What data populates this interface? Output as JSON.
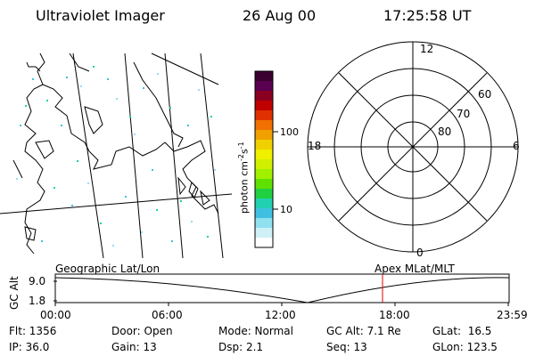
{
  "header": {
    "title": "Ultraviolet Imager",
    "date": "26 Aug 00",
    "time": "17:25:58 UT"
  },
  "colorbar": {
    "unit_prefix": "photon cm",
    "unit_exp1": "-2",
    "unit_mid": "s",
    "unit_exp2": "-1",
    "tick_100": "100",
    "tick_10": "10",
    "colors": [
      "#3a0030",
      "#5a0050",
      "#8a0020",
      "#c00000",
      "#e03000",
      "#f07000",
      "#f0a000",
      "#f0d000",
      "#f0f000",
      "#d0f000",
      "#a0f000",
      "#60e000",
      "#20d040",
      "#20d0b0",
      "#40c0e0",
      "#90e0f0",
      "#d0f0f8",
      "#ffffff"
    ]
  },
  "polar": {
    "mlt_12": "12",
    "mlt_18": "18",
    "mlt_6": "6",
    "mlt_0": "0",
    "lat_60": "60",
    "lat_70": "70",
    "lat_80": "80"
  },
  "strip": {
    "ylabel": "GC Alt",
    "y_top": "9.0",
    "y_bottom": "1.8",
    "label_left": "Geographic Lat/Lon",
    "label_right": "Apex MLat/MLT",
    "marker_color": "#e00000",
    "times": [
      "00:00",
      "06:00",
      "12:00",
      "18:00",
      "23:59"
    ]
  },
  "info": {
    "flt": "Flt: 1356",
    "ip": "IP: 36.0",
    "door": "Door: Open",
    "gain": "Gain: 13",
    "mode": "Mode: Normal",
    "dsp": "Dsp:    2.1",
    "gc_alt": "GC Alt: 7.1 Re",
    "seq": "Seq: 13",
    "glat": "GLat:  16.5",
    "glon": "GLon: 123.5"
  }
}
